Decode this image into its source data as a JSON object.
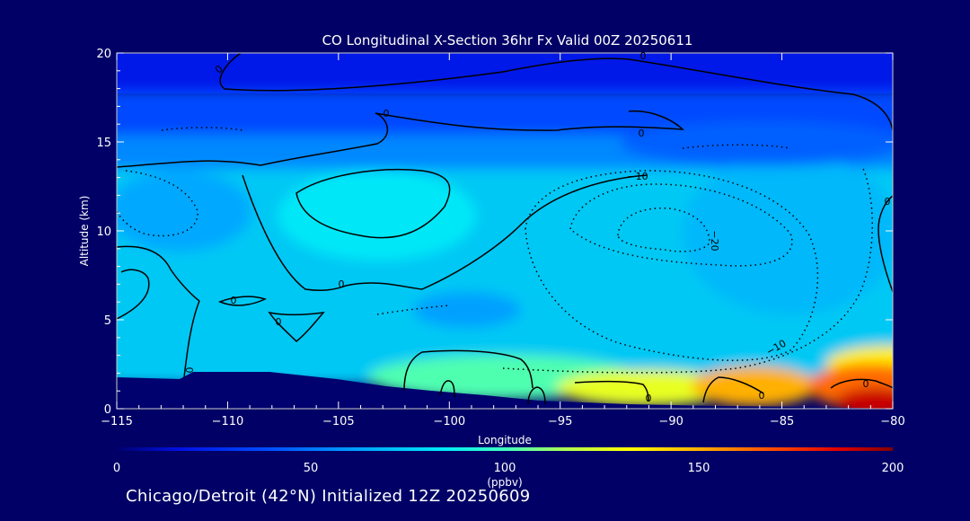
{
  "chart_data": {
    "type": "heatmap",
    "title": "CO Longitudinal X-Section 36hr  Fx Valid 00Z 20250611",
    "xlabel": "Longitude",
    "ylabel": "Altitude (km)",
    "xlim": [
      -115,
      -80
    ],
    "ylim": [
      0,
      20
    ],
    "xticks": [
      -115,
      -110,
      -105,
      -100,
      -95,
      -90,
      -85,
      -80
    ],
    "xtick_labels": [
      "−115",
      "−110",
      "−105",
      "−100",
      "−95",
      "−90",
      "−85",
      "−80"
    ],
    "yticks": [
      0,
      5,
      10,
      15,
      20
    ],
    "ytick_labels": [
      "0",
      "5",
      "10",
      "15",
      "20"
    ],
    "colorbar": {
      "min": 0,
      "max": 200,
      "ticks": [
        0,
        50,
        100,
        150,
        200
      ],
      "tick_labels": [
        "0",
        "50",
        "100",
        "150",
        "200"
      ],
      "units": "(ppbv)",
      "colormap": [
        "#00006e",
        "#0010e0",
        "#0050ff",
        "#00a8ff",
        "#00e8f8",
        "#40ffc0",
        "#b0ff50",
        "#ffff00",
        "#ffb000",
        "#ff5000",
        "#e00000",
        "#800000"
      ]
    },
    "co_field_ppbv_samples": [
      {
        "lon": -112,
        "alt": 18,
        "value": 25
      },
      {
        "lon": -100,
        "alt": 15,
        "value": 45
      },
      {
        "lon": -100,
        "alt": 12,
        "value": 75
      },
      {
        "lon": -92,
        "alt": 10,
        "value": 78
      },
      {
        "lon": -105,
        "alt": 6,
        "value": 80
      },
      {
        "lon": -96,
        "alt": 1.5,
        "value": 105
      },
      {
        "lon": -88,
        "alt": 0.8,
        "value": 140
      },
      {
        "lon": -82,
        "alt": 0.8,
        "value": 185
      }
    ],
    "contour_labels": [
      "0",
      "0",
      "0",
      "0",
      "0",
      "0",
      "0",
      "0",
      "0",
      "0",
      "0",
      "−10",
      "−20",
      "−10",
      "0"
    ],
    "terrain_altitude_km": [
      {
        "lon": -115,
        "alt": 1.7
      },
      {
        "lon": -112,
        "alt": 1.6
      },
      {
        "lon": -110,
        "alt": 1.7
      },
      {
        "lon": -105,
        "alt": 1.4
      },
      {
        "lon": -100,
        "alt": 0.9
      },
      {
        "lon": -95,
        "alt": 0.4
      },
      {
        "lon": -90,
        "alt": 0.3
      },
      {
        "lon": -85,
        "alt": 0.2
      },
      {
        "lon": -80,
        "alt": 0.2
      }
    ]
  },
  "caption": "Chicago/Detroit (42°N) Initialized 12Z 20250609"
}
